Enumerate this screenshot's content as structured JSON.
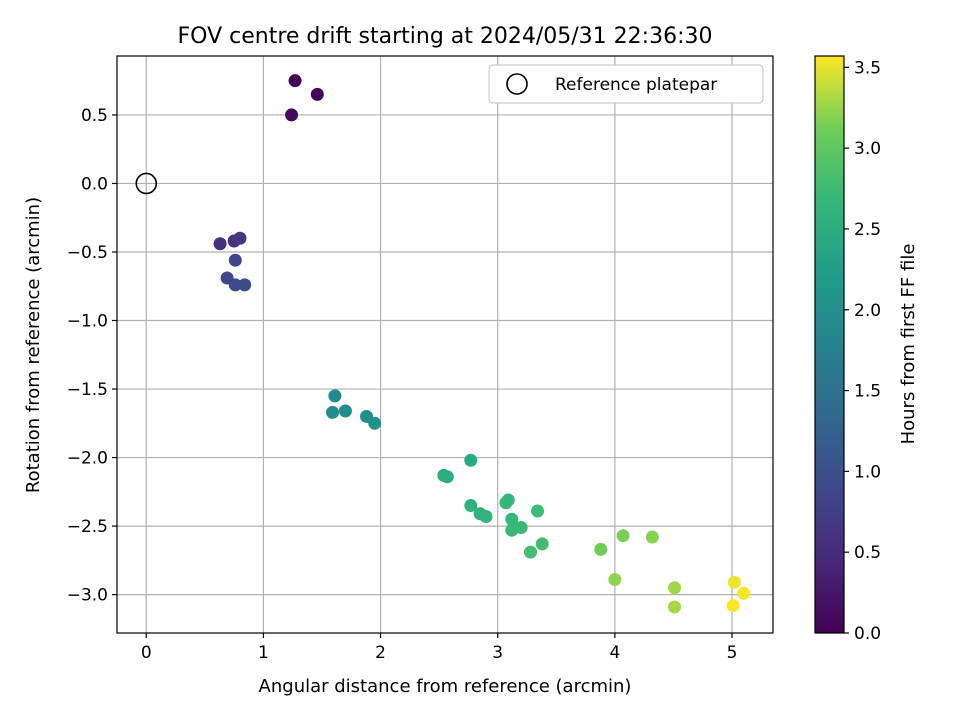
{
  "chart_data": {
    "type": "scatter",
    "title": "FOV centre drift starting at 2024/05/31 22:36:30",
    "xlabel": "Angular distance from reference (arcmin)",
    "ylabel": "Rotation from reference (arcmin)",
    "xlim": [
      -0.25,
      5.35
    ],
    "ylim": [
      -3.28,
      0.93
    ],
    "xticks": [
      0,
      1,
      2,
      3,
      4,
      5
    ],
    "xtick_labels": [
      "0",
      "1",
      "2",
      "3",
      "4",
      "5"
    ],
    "yticks": [
      0.5,
      0.0,
      -0.5,
      -1.0,
      -1.5,
      -2.0,
      -2.5,
      -3.0
    ],
    "ytick_labels": [
      "0.5",
      "0.0",
      "−0.5",
      "−1.0",
      "−1.5",
      "−2.0",
      "−2.5",
      "−3.0"
    ],
    "grid": true,
    "legend": {
      "position": "top-right",
      "label": "Reference platepar"
    },
    "reference_point": {
      "x": 0,
      "y": 0
    },
    "colorbar": {
      "label": "Hours from first FF file",
      "range": [
        0,
        3.57
      ],
      "ticks": [
        0.0,
        0.5,
        1.0,
        1.5,
        2.0,
        2.5,
        3.0,
        3.5
      ],
      "tick_labels": [
        "0.0",
        "0.5",
        "1.0",
        "1.5",
        "2.0",
        "2.5",
        "3.0",
        "3.5"
      ],
      "colormap": "viridis"
    },
    "points": [
      {
        "x": 1.27,
        "y": 0.75,
        "hours": 0.02
      },
      {
        "x": 1.46,
        "y": 0.65,
        "hours": 0.06
      },
      {
        "x": 1.24,
        "y": 0.5,
        "hours": 0.1
      },
      {
        "x": 0.63,
        "y": -0.44,
        "hours": 0.55
      },
      {
        "x": 0.75,
        "y": -0.42,
        "hours": 0.58
      },
      {
        "x": 0.8,
        "y": -0.4,
        "hours": 0.62
      },
      {
        "x": 0.76,
        "y": -0.56,
        "hours": 0.85
      },
      {
        "x": 0.69,
        "y": -0.69,
        "hours": 0.88
      },
      {
        "x": 0.76,
        "y": -0.74,
        "hours": 0.9
      },
      {
        "x": 0.84,
        "y": -0.74,
        "hours": 0.93
      },
      {
        "x": 1.61,
        "y": -1.55,
        "hours": 1.9
      },
      {
        "x": 1.59,
        "y": -1.67,
        "hours": 1.93
      },
      {
        "x": 1.7,
        "y": -1.66,
        "hours": 1.96
      },
      {
        "x": 1.88,
        "y": -1.7,
        "hours": 1.99
      },
      {
        "x": 1.95,
        "y": -1.75,
        "hours": 2.02
      },
      {
        "x": 2.77,
        "y": -2.02,
        "hours": 2.42
      },
      {
        "x": 2.54,
        "y": -2.13,
        "hours": 2.5
      },
      {
        "x": 2.57,
        "y": -2.14,
        "hours": 2.52
      },
      {
        "x": 2.77,
        "y": -2.35,
        "hours": 2.56
      },
      {
        "x": 2.85,
        "y": -2.41,
        "hours": 2.58
      },
      {
        "x": 2.9,
        "y": -2.43,
        "hours": 2.6
      },
      {
        "x": 3.09,
        "y": -2.31,
        "hours": 2.63
      },
      {
        "x": 3.07,
        "y": -2.33,
        "hours": 2.65
      },
      {
        "x": 3.12,
        "y": -2.45,
        "hours": 2.68
      },
      {
        "x": 3.12,
        "y": -2.53,
        "hours": 2.7
      },
      {
        "x": 3.2,
        "y": -2.51,
        "hours": 2.72
      },
      {
        "x": 3.34,
        "y": -2.39,
        "hours": 2.75
      },
      {
        "x": 3.38,
        "y": -2.63,
        "hours": 2.78
      },
      {
        "x": 3.28,
        "y": -2.69,
        "hours": 2.8
      },
      {
        "x": 3.88,
        "y": -2.67,
        "hours": 3.12
      },
      {
        "x": 4.07,
        "y": -2.57,
        "hours": 3.16
      },
      {
        "x": 4.32,
        "y": -2.58,
        "hours": 3.2
      },
      {
        "x": 4.0,
        "y": -2.89,
        "hours": 3.22
      },
      {
        "x": 4.51,
        "y": -2.95,
        "hours": 3.28
      },
      {
        "x": 4.51,
        "y": -3.09,
        "hours": 3.3
      },
      {
        "x": 5.02,
        "y": -2.91,
        "hours": 3.52
      },
      {
        "x": 5.1,
        "y": -2.99,
        "hours": 3.55
      },
      {
        "x": 5.01,
        "y": -3.08,
        "hours": 3.57
      }
    ]
  }
}
